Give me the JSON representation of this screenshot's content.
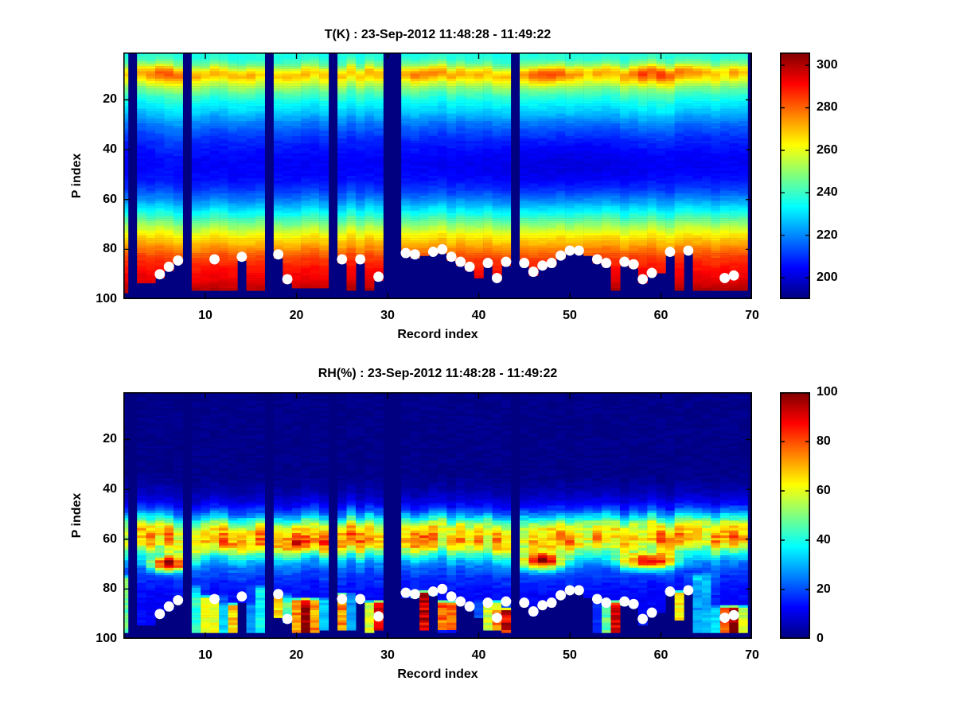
{
  "figure": {
    "background": "#ffffff",
    "text_color": "#000000"
  },
  "chart_data": [
    {
      "type": "heatmap",
      "title": "T(K) : 23-Sep-2012 11:48:28 - 11:49:22",
      "xlabel": "Record index",
      "ylabel": "P index",
      "xlim": [
        1,
        70
      ],
      "ylim": [
        1,
        100
      ],
      "y_reversed": true,
      "grid": "off",
      "x_ticks": [
        10,
        20,
        30,
        40,
        50,
        60,
        70
      ],
      "y_ticks": [
        20,
        40,
        60,
        80,
        100
      ],
      "colormap": "jet",
      "clim": [
        190,
        306
      ],
      "colorbar_ticks": [
        200,
        220,
        240,
        260,
        280,
        300
      ],
      "missing_records": [
        2,
        8,
        17,
        24,
        30,
        31,
        44,
        70
      ],
      "profile_p_value": [
        [
          1,
          236
        ],
        [
          4,
          239
        ],
        [
          6,
          248
        ],
        [
          8,
          263
        ],
        [
          9,
          268
        ],
        [
          10,
          270
        ],
        [
          11,
          266
        ],
        [
          13,
          258
        ],
        [
          15,
          250
        ],
        [
          17,
          243
        ],
        [
          20,
          236
        ],
        [
          24,
          229
        ],
        [
          28,
          221
        ],
        [
          32,
          214
        ],
        [
          36,
          209
        ],
        [
          40,
          206
        ],
        [
          44,
          204
        ],
        [
          48,
          204
        ],
        [
          52,
          206
        ],
        [
          56,
          211
        ],
        [
          60,
          220
        ],
        [
          63,
          228
        ],
        [
          66,
          237
        ],
        [
          69,
          246
        ],
        [
          72,
          256
        ],
        [
          75,
          265
        ],
        [
          78,
          272
        ],
        [
          81,
          279
        ],
        [
          84,
          285
        ],
        [
          88,
          290
        ],
        [
          92,
          293
        ],
        [
          96,
          296
        ],
        [
          100,
          298
        ]
      ],
      "anomalies": [
        {
          "rc": 5.5,
          "pc": 10,
          "sr": 1.4,
          "sp": 3.2,
          "amp": 15
        },
        {
          "rc": 6,
          "pc": 28,
          "sr": 1.2,
          "sp": 14,
          "amp": 5
        },
        {
          "rc": 34.5,
          "pc": 9,
          "sr": 2.5,
          "sp": 2.5,
          "amp": 8
        },
        {
          "rc": 47.5,
          "pc": 10,
          "sr": 2.0,
          "sp": 3.0,
          "amp": 13
        },
        {
          "rc": 59,
          "pc": 10,
          "sr": 2.3,
          "sp": 3.2,
          "amp": 14
        },
        {
          "rc": 59,
          "pc": 25,
          "sr": 1.5,
          "sp": 10,
          "amp": 5
        },
        {
          "rc": 50,
          "pc": 46,
          "sr": 7,
          "sp": 8,
          "amp": -3
        }
      ],
      "streaks": [],
      "surface_mask_start": [
        98,
        0,
        94,
        94,
        92,
        89,
        86,
        0,
        97,
        97,
        97,
        97,
        97,
        85,
        97,
        97,
        0,
        84,
        94,
        96,
        96,
        96,
        96,
        0,
        86,
        97,
        86,
        97,
        93,
        0,
        0,
        83,
        84,
        83,
        82,
        82,
        85,
        87,
        89,
        92,
        87,
        93,
        87,
        0,
        87,
        91,
        88,
        87,
        84,
        82,
        82,
        83,
        86,
        87,
        97,
        87,
        88,
        94,
        91,
        90,
        83,
        97,
        82,
        97,
        97,
        97,
        97,
        97,
        97,
        0
      ]
    },
    {
      "type": "heatmap",
      "title": "RH(%) : 23-Sep-2012 11:48:28 - 11:49:22",
      "xlabel": "Record index",
      "ylabel": "P index",
      "xlim": [
        1,
        70
      ],
      "ylim": [
        1,
        100
      ],
      "y_reversed": true,
      "grid": "off",
      "x_ticks": [
        10,
        20,
        30,
        40,
        50,
        60,
        70
      ],
      "y_ticks": [
        20,
        40,
        60,
        80,
        100
      ],
      "colormap": "jet",
      "clim": [
        0,
        100
      ],
      "colorbar_ticks": [
        0,
        20,
        40,
        60,
        80,
        100
      ],
      "missing_records": [
        2,
        8,
        17,
        24,
        30,
        31,
        44,
        70
      ],
      "profile_p_value": [
        [
          1,
          1
        ],
        [
          34,
          1
        ],
        [
          37,
          2
        ],
        [
          40,
          4
        ],
        [
          43,
          7
        ],
        [
          46,
          12
        ],
        [
          49,
          22
        ],
        [
          52,
          40
        ],
        [
          54,
          55
        ],
        [
          56,
          64
        ],
        [
          58,
          68
        ],
        [
          60,
          70
        ],
        [
          61,
          70
        ],
        [
          62,
          67
        ],
        [
          64,
          57
        ],
        [
          66,
          44
        ],
        [
          68,
          33
        ],
        [
          70,
          26
        ],
        [
          73,
          20
        ],
        [
          76,
          17
        ],
        [
          80,
          14
        ],
        [
          85,
          12
        ],
        [
          90,
          12
        ],
        [
          95,
          13
        ],
        [
          100,
          15
        ]
      ],
      "anomalies": [
        {
          "rc": 6,
          "pc": 70,
          "sr": 1.3,
          "sp": 2.2,
          "amp": 75
        },
        {
          "rc": 47,
          "pc": 69,
          "sr": 1.6,
          "sp": 2.4,
          "amp": 65
        },
        {
          "rc": 58.5,
          "pc": 69,
          "sr": 2.0,
          "sp": 2.2,
          "amp": 65
        },
        {
          "rc": 21,
          "pc": 62,
          "sr": 1.5,
          "sp": 2.0,
          "amp": 15
        },
        {
          "rc": 13,
          "pc": 62,
          "sr": 1.0,
          "sp": 2.0,
          "amp": 10
        }
      ],
      "streaks": [
        {
          "rc": 1,
          "sr": 0.7,
          "p0": 76,
          "p1": 97,
          "amp": 35
        },
        {
          "rc": 9,
          "sr": 0.5,
          "p0": 80,
          "p1": 97,
          "amp": 20
        },
        {
          "rc": 10.5,
          "sr": 0.8,
          "p0": 84,
          "p1": 97,
          "amp": 55
        },
        {
          "rc": 13.5,
          "sr": 0.8,
          "p0": 87,
          "p1": 97,
          "amp": 65
        },
        {
          "rc": 16,
          "sr": 0.5,
          "p0": 80,
          "p1": 97,
          "amp": 25
        },
        {
          "rc": 18,
          "sr": 0.6,
          "p0": 83,
          "p1": 91,
          "amp": 50
        },
        {
          "rc": 21,
          "sr": 1.2,
          "p0": 85,
          "p1": 97,
          "amp": 85
        },
        {
          "rc": 25,
          "sr": 0.6,
          "p0": 83,
          "p1": 96,
          "amp": 60
        },
        {
          "rc": 28.8,
          "sr": 0.8,
          "p0": 86,
          "p1": 97,
          "amp": 75
        },
        {
          "rc": 34,
          "sr": 0.6,
          "p0": 82,
          "p1": 96,
          "amp": 80
        },
        {
          "rc": 36.5,
          "sr": 0.9,
          "p0": 86,
          "p1": 96,
          "amp": 75
        },
        {
          "rc": 41.5,
          "sr": 0.8,
          "p0": 86,
          "p1": 96,
          "amp": 55
        },
        {
          "rc": 43,
          "sr": 0.6,
          "p0": 89,
          "p1": 97,
          "amp": 70
        },
        {
          "rc": 55,
          "sr": 0.8,
          "p0": 86,
          "p1": 97,
          "amp": 75
        },
        {
          "rc": 62,
          "sr": 0.5,
          "p0": 82,
          "p1": 92,
          "amp": 50
        },
        {
          "rc": 64.5,
          "sr": 0.8,
          "p0": 75,
          "p1": 97,
          "amp": 20
        },
        {
          "rc": 67.8,
          "sr": 1.0,
          "p0": 88,
          "p1": 97,
          "amp": 90
        }
      ],
      "surface_mask_start": [
        98,
        0,
        95,
        95,
        92,
        89,
        86,
        0,
        98,
        98,
        98,
        98,
        98,
        86,
        98,
        98,
        0,
        92,
        94,
        98,
        98,
        98,
        97,
        0,
        97,
        97,
        86,
        98,
        97,
        0,
        0,
        84,
        84,
        97,
        83,
        98,
        98,
        86,
        89,
        92,
        97,
        97,
        98,
        0,
        87,
        91,
        88,
        87,
        84,
        82,
        82,
        84,
        98,
        98,
        98,
        87,
        88,
        95,
        91,
        90,
        83,
        93,
        82,
        98,
        98,
        98,
        98,
        98,
        98,
        0
      ]
    }
  ],
  "surface_dots": {
    "color": "#ffffff",
    "points": [
      [
        5,
        90
      ],
      [
        6,
        87
      ],
      [
        7,
        84.5
      ],
      [
        11,
        84
      ],
      [
        14,
        83
      ],
      [
        18,
        82
      ],
      [
        19,
        92
      ],
      [
        25,
        84
      ],
      [
        27,
        84
      ],
      [
        29,
        91
      ],
      [
        32,
        81.5
      ],
      [
        33,
        82
      ],
      [
        35,
        81
      ],
      [
        36,
        80
      ],
      [
        37,
        83
      ],
      [
        38,
        85
      ],
      [
        39,
        87
      ],
      [
        41,
        85.5
      ],
      [
        42,
        91.5
      ],
      [
        43,
        85
      ],
      [
        45,
        85.5
      ],
      [
        46,
        89
      ],
      [
        47,
        86.5
      ],
      [
        48,
        85.5
      ],
      [
        49,
        82.5
      ],
      [
        50,
        80.5
      ],
      [
        51,
        80.5
      ],
      [
        53,
        84
      ],
      [
        54,
        85.5
      ],
      [
        56,
        85
      ],
      [
        57,
        86
      ],
      [
        58,
        92
      ],
      [
        59,
        89.5
      ],
      [
        61,
        81
      ],
      [
        63,
        80.5
      ],
      [
        67,
        91.5
      ],
      [
        68,
        90.5
      ]
    ]
  }
}
